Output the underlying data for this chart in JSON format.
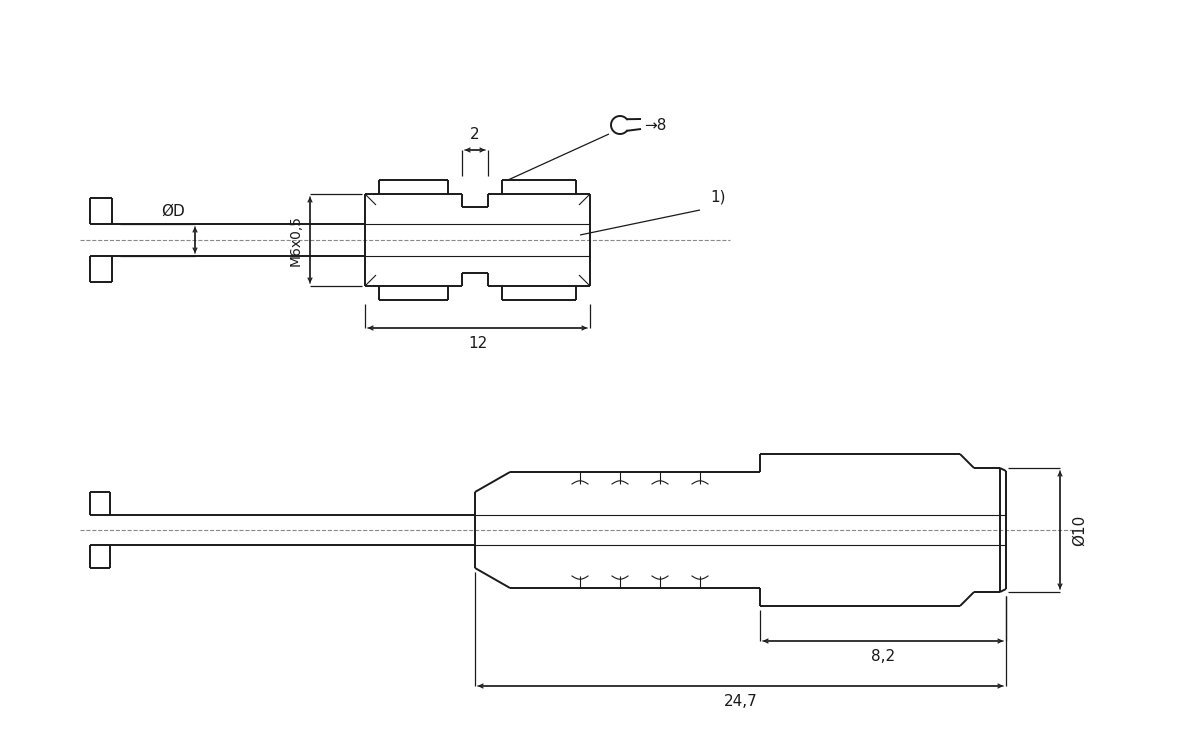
{
  "bg_color": "#ffffff",
  "line_color": "#1a1a1a",
  "figsize": [
    12.0,
    7.43
  ],
  "dpi": 100,
  "lw_main": 1.4,
  "lw_thin": 0.8,
  "lw_dim": 0.9,
  "annotations": {
    "dim_2": "2",
    "dim_M6x05": "M6x0,5",
    "dim_phi_D": "ØD",
    "dim_8_sw": "→8",
    "dim_1": "1)",
    "dim_12": "12",
    "dim_phi_10": "Ø10",
    "dim_8_2": "8,2",
    "dim_24_7": "24,7"
  }
}
